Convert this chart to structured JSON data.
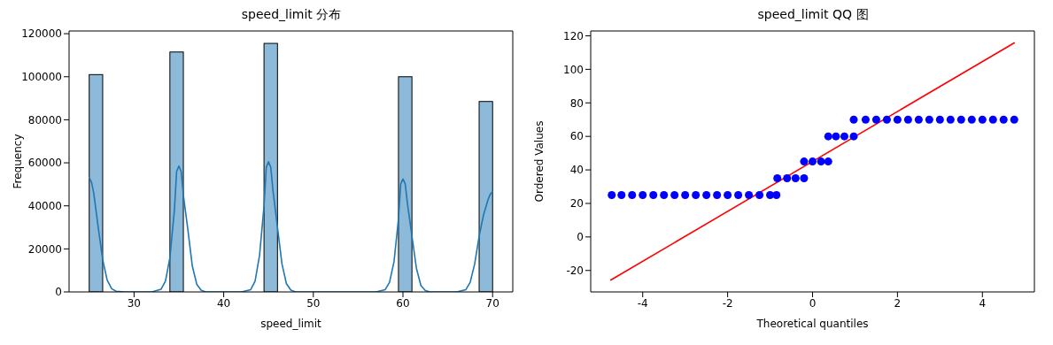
{
  "chart_data": [
    {
      "type": "histogram",
      "title": "speed_limit 分布",
      "xlabel": "speed_limit",
      "ylabel": "Frequency",
      "bins": [
        25,
        26.5,
        28,
        29.5,
        31,
        32.5,
        34,
        35.5,
        37,
        38.5,
        40,
        41.5,
        43,
        44.5,
        46,
        47.5,
        49,
        50.5,
        52,
        53.5,
        55,
        56.5,
        58,
        59.5,
        61,
        62.5,
        64,
        65.5,
        67,
        68.5,
        70
      ],
      "values": [
        101000,
        0,
        0,
        0,
        0,
        0,
        111500,
        0,
        0,
        0,
        0,
        0,
        0,
        115500,
        0,
        0,
        0,
        0,
        0,
        0,
        0,
        0,
        0,
        100000,
        0,
        0,
        0,
        0,
        0,
        88500
      ],
      "color": "#8ebad9",
      "xlim": [
        22.75,
        72.25
      ],
      "xticks": [
        30,
        40,
        50,
        60,
        70
      ],
      "ylim": [
        0,
        121275
      ],
      "yticks": [
        0,
        20000,
        40000,
        60000,
        80000,
        100000,
        120000
      ],
      "series": [
        {
          "type": "line",
          "color": "#1f77b4",
          "x": [
            25,
            25.25,
            25.5,
            26,
            26.5,
            27,
            27.5,
            28,
            29,
            32,
            33,
            33.5,
            34,
            34.5,
            34.75,
            35,
            35.25,
            35.5,
            36,
            36.5,
            37,
            37.5,
            38,
            42,
            43,
            43.5,
            44,
            44.5,
            44.75,
            45,
            45.25,
            45.5,
            46,
            46.5,
            47,
            47.5,
            48,
            57,
            58,
            58.5,
            59,
            59.5,
            59.75,
            60,
            60.25,
            60.5,
            61,
            61.5,
            62,
            62.5,
            63,
            66,
            67,
            67.5,
            68,
            68.5,
            69,
            69.5,
            69.75,
            70
          ],
          "values": [
            53000,
            51000,
            46000,
            30000,
            15000,
            5500,
            1500,
            300,
            0,
            0,
            1200,
            5000,
            16000,
            38000,
            56000,
            58500,
            56000,
            45000,
            29000,
            12000,
            3500,
            700,
            0,
            0,
            1000,
            5000,
            17000,
            40000,
            57900,
            60500,
            57900,
            47000,
            30000,
            13000,
            3800,
            800,
            0,
            0,
            1000,
            4500,
            14000,
            34000,
            50200,
            52500,
            50200,
            41000,
            26000,
            11000,
            3000,
            600,
            0,
            0,
            1000,
            4500,
            13000,
            26000,
            36000,
            43000,
            45500,
            46500
          ]
        }
      ]
    },
    {
      "type": "scatter",
      "title": "speed_limit QQ 图",
      "xlabel": "Theoretical quantiles",
      "ylabel": "Ordered Values",
      "xlim": [
        -5.225,
        5.225
      ],
      "xticks": [
        -4,
        -2,
        0,
        2,
        4
      ],
      "ylim": [
        -32.8,
        122.9
      ],
      "yticks": [
        -20,
        0,
        20,
        40,
        60,
        80,
        100,
        120
      ],
      "series": [
        {
          "type": "scatter",
          "marker": "circle",
          "color": "#0000ff",
          "x": [
            -4.73,
            -4.5,
            -4.25,
            -4,
            -3.75,
            -3.5,
            -3.25,
            -3,
            -2.75,
            -2.5,
            -2.25,
            -2,
            -1.75,
            -1.5,
            -1.25,
            -1,
            -0.85,
            -0.83,
            -0.6,
            -0.4,
            -0.2,
            -0.2,
            0,
            0.2,
            0.37,
            0.37,
            0.55,
            0.75,
            0.97,
            0.97,
            1.25,
            1.5,
            1.75,
            2,
            2.25,
            2.5,
            2.75,
            3,
            3.25,
            3.5,
            3.75,
            4,
            4.25,
            4.5,
            4.75
          ],
          "values": [
            25,
            25,
            25,
            25,
            25,
            25,
            25,
            25,
            25,
            25,
            25,
            25,
            25,
            25,
            25,
            25,
            25,
            35,
            35,
            35,
            35,
            45,
            45,
            45,
            45,
            60,
            60,
            60,
            60,
            70,
            70,
            70,
            70,
            70,
            70,
            70,
            70,
            70,
            70,
            70,
            70,
            70,
            70,
            70,
            70
          ]
        },
        {
          "type": "line",
          "color": "#ff0000",
          "x": [
            -4.75,
            4.75
          ],
          "values": [
            -25.7,
            115.8
          ]
        }
      ]
    }
  ]
}
